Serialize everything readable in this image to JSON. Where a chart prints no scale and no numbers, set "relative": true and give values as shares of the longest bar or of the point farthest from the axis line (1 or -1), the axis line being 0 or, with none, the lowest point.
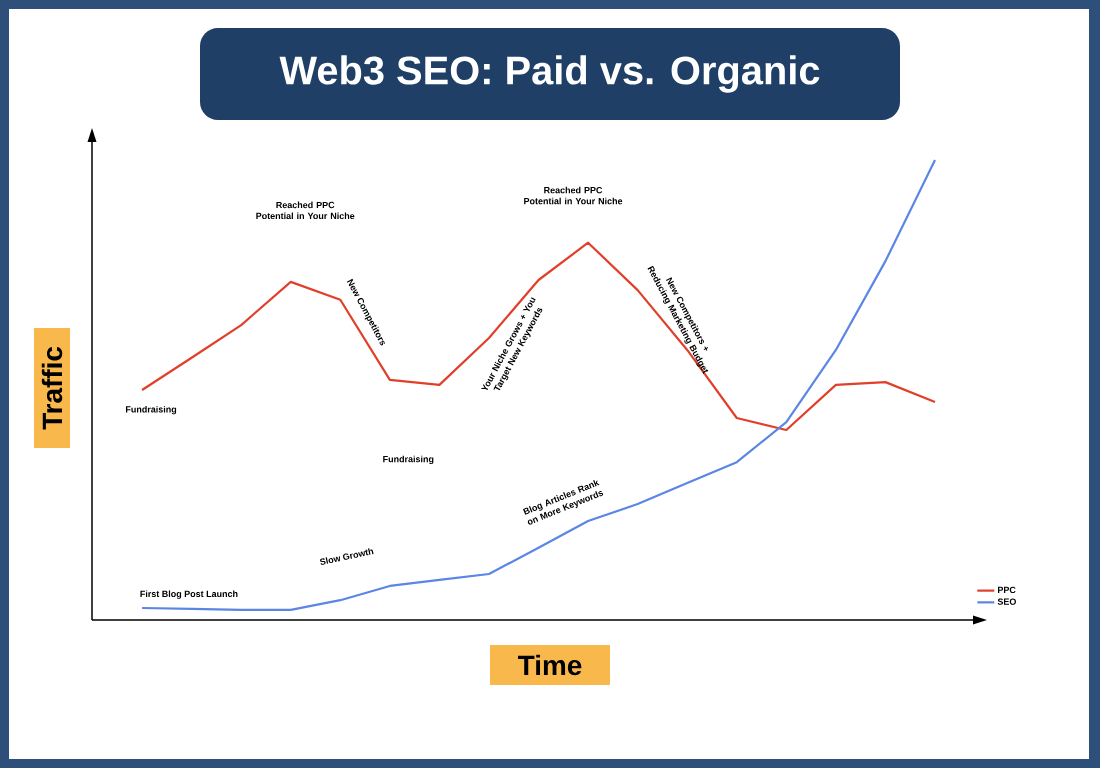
{
  "chart_data": {
    "type": "line",
    "title": "Web3 SEO: Paid vs. Organic",
    "xlabel": "Time",
    "ylabel": "Traffic",
    "relative": true,
    "legend": "bottom right",
    "marker": "none",
    "line_style": "solid",
    "categories": [
      null,
      null,
      null,
      null,
      null,
      null,
      null,
      null,
      null,
      null,
      null,
      null,
      null,
      null,
      null,
      null,
      null
    ],
    "series": [
      {
        "name": "PPC",
        "color": "#e0402a",
        "values": [
          0.5,
          0.57,
          0.641,
          0.735,
          0.696,
          0.522,
          0.511,
          0.613,
          0.739,
          0.82,
          0.717,
          0.587,
          0.439,
          0.413,
          0.511,
          0.517,
          0.474
        ]
      },
      {
        "name": "SEO",
        "color": "#5b86e5",
        "values": [
          0.026,
          0.024,
          0.022,
          0.022,
          0.043,
          0.074,
          0.087,
          0.1,
          0.157,
          0.215,
          0.252,
          0.298,
          0.343,
          0.43,
          0.587,
          0.78,
          1.0
        ]
      }
    ],
    "annotations": [
      "Reached PPC Potential in Your Niche",
      "New Competitors",
      "Fundraising",
      "Fundraising",
      "Your Niche Grows + You Target New Keywords",
      "Reached PPC Potential in Your Niche",
      "New Competitors + Reducing Marketing Budget",
      "First Blog Post Launch",
      "Slow Growth",
      "Blog Articles Rank on More Keywords"
    ]
  }
}
